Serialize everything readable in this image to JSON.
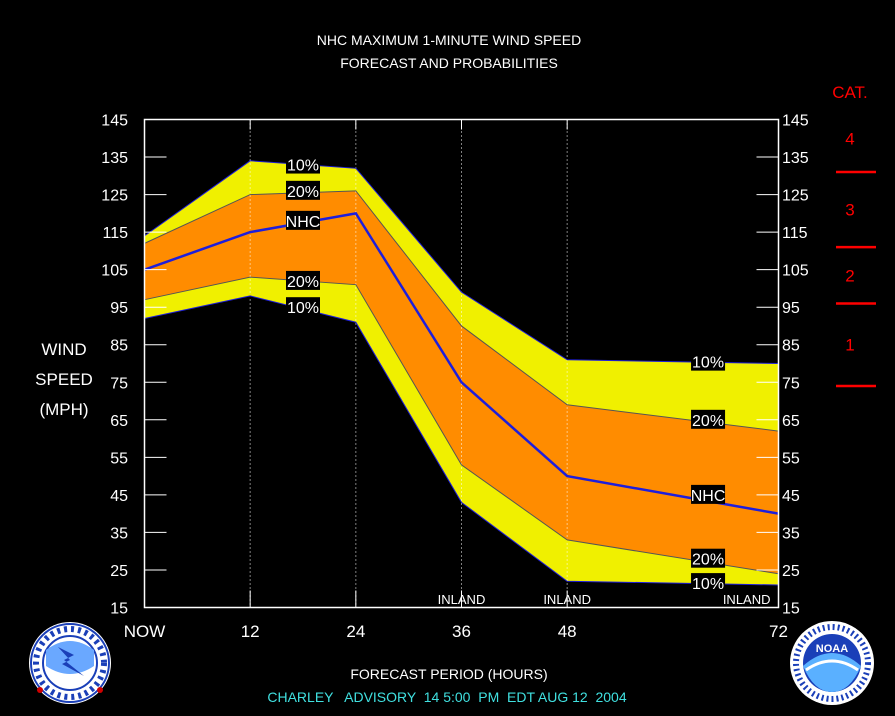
{
  "chart_data": {
    "type": "area",
    "title": "NHC MAXIMUM 1-MINUTE WIND SPEED",
    "subtitle": "FORECAST AND PROBABILITIES",
    "xlabel": "FORECAST PERIOD (HOURS)",
    "ylabel": [
      "WIND",
      "SPEED",
      "(MPH)"
    ],
    "footer": "CHARLEY   ADVISORY  14 5:00  PM  EDT AUG 12  2004",
    "ylim": [
      15,
      145
    ],
    "xlim": [
      0,
      72
    ],
    "yticks": [
      15,
      25,
      35,
      45,
      55,
      65,
      75,
      85,
      95,
      105,
      115,
      125,
      135,
      145
    ],
    "xticks": [
      {
        "value": 0,
        "label": "NOW"
      },
      {
        "value": 12,
        "label": "12"
      },
      {
        "value": 24,
        "label": "24"
      },
      {
        "value": 36,
        "label": "36"
      },
      {
        "value": 48,
        "label": "48"
      },
      {
        "value": 72,
        "label": "72"
      }
    ],
    "x": [
      0,
      12,
      24,
      36,
      48,
      72
    ],
    "series": [
      {
        "name": "10%",
        "role": "upper",
        "values": [
          114,
          134,
          132,
          99,
          81,
          80
        ]
      },
      {
        "name": "20%",
        "role": "upper",
        "values": [
          112,
          125,
          126,
          90,
          69,
          62
        ]
      },
      {
        "name": "NHC",
        "values": [
          105,
          115,
          120,
          75,
          50,
          40
        ]
      },
      {
        "name": "20%",
        "role": "lower",
        "values": [
          97,
          103,
          101,
          53,
          33,
          24
        ]
      },
      {
        "name": "10%",
        "role": "lower",
        "values": [
          92,
          98,
          91,
          43,
          22,
          21
        ]
      }
    ],
    "curve_labels": [
      {
        "text": "10%",
        "x": 18,
        "y": 133
      },
      {
        "text": "20%",
        "x": 18,
        "y": 126
      },
      {
        "text": "NHC",
        "x": 18,
        "y": 118
      },
      {
        "text": "20%",
        "x": 18,
        "y": 102
      },
      {
        "text": "10%",
        "x": 18,
        "y": 95
      },
      {
        "text": "10%",
        "x": 64,
        "y": 80.5
      },
      {
        "text": "20%",
        "x": 64,
        "y": 65
      },
      {
        "text": "NHC",
        "x": 64,
        "y": 45
      },
      {
        "text": "20%",
        "x": 64,
        "y": 28
      },
      {
        "text": "10%",
        "x": 64,
        "y": 21.5
      }
    ],
    "inland_markers": [
      {
        "x": 36,
        "label": "INLAND"
      },
      {
        "x": 48,
        "label": "INLAND"
      },
      {
        "x": 72,
        "label": "INLAND"
      }
    ],
    "category_scale": {
      "title": "CAT.",
      "boundaries": [
        74,
        96,
        111,
        131
      ],
      "categories": [
        {
          "label": "1",
          "y": 85
        },
        {
          "label": "2",
          "y": 103.5
        },
        {
          "label": "3",
          "y": 121
        },
        {
          "label": "4",
          "y": 140
        }
      ]
    },
    "colors": {
      "outer_band": "#f0f000",
      "inner_band": "#ff8c00",
      "nhc_line": "#1e1edc",
      "frame": "#ffffff",
      "category": "#ff0000",
      "footer": "#40e0e0"
    }
  },
  "logos": {
    "left": {
      "name": "national-weather-service-logo"
    },
    "right": {
      "name": "noaa-logo",
      "text": "NOAA"
    }
  }
}
